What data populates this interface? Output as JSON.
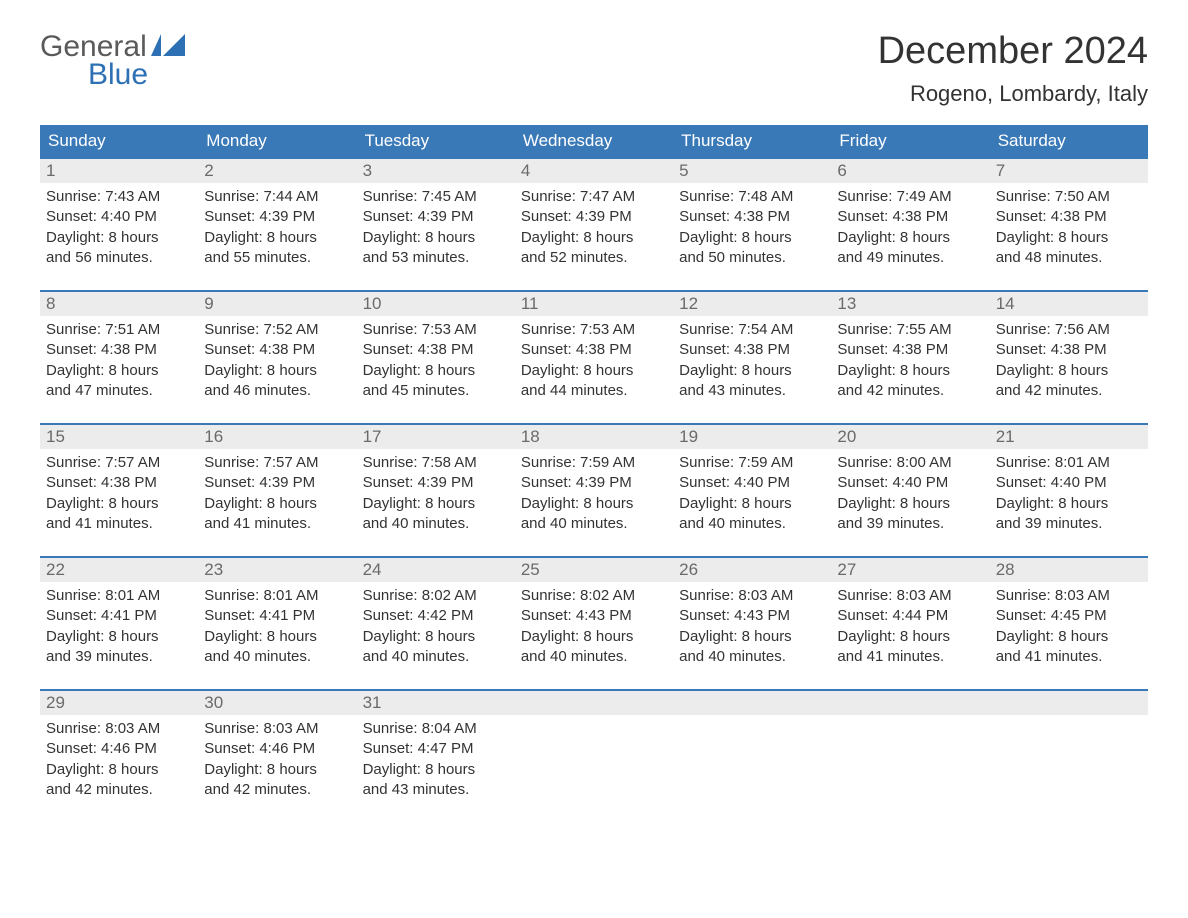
{
  "logo": {
    "word1": "General",
    "word2": "Blue",
    "accent_color": "#2d71b4",
    "text_color": "#5a5a5a"
  },
  "title": "December 2024",
  "location": "Rogeno, Lombardy, Italy",
  "colors": {
    "header_bg": "#3a79b7",
    "header_text": "#ffffff",
    "daynum_bg": "#ececec",
    "daynum_text": "#6a6a6a",
    "body_text": "#333333",
    "week_border": "#3a79b7",
    "page_bg": "#ffffff"
  },
  "typography": {
    "title_fontsize": 38,
    "location_fontsize": 22,
    "dayheader_fontsize": 17,
    "daynum_fontsize": 17,
    "body_fontsize": 15
  },
  "layout": {
    "columns": 7,
    "rows": 5
  },
  "day_headers": [
    "Sunday",
    "Monday",
    "Tuesday",
    "Wednesday",
    "Thursday",
    "Friday",
    "Saturday"
  ],
  "weeks": [
    [
      {
        "n": "1",
        "sunrise": "7:43 AM",
        "sunset": "4:40 PM",
        "dl1": "Daylight: 8 hours",
        "dl2": "and 56 minutes."
      },
      {
        "n": "2",
        "sunrise": "7:44 AM",
        "sunset": "4:39 PM",
        "dl1": "Daylight: 8 hours",
        "dl2": "and 55 minutes."
      },
      {
        "n": "3",
        "sunrise": "7:45 AM",
        "sunset": "4:39 PM",
        "dl1": "Daylight: 8 hours",
        "dl2": "and 53 minutes."
      },
      {
        "n": "4",
        "sunrise": "7:47 AM",
        "sunset": "4:39 PM",
        "dl1": "Daylight: 8 hours",
        "dl2": "and 52 minutes."
      },
      {
        "n": "5",
        "sunrise": "7:48 AM",
        "sunset": "4:38 PM",
        "dl1": "Daylight: 8 hours",
        "dl2": "and 50 minutes."
      },
      {
        "n": "6",
        "sunrise": "7:49 AM",
        "sunset": "4:38 PM",
        "dl1": "Daylight: 8 hours",
        "dl2": "and 49 minutes."
      },
      {
        "n": "7",
        "sunrise": "7:50 AM",
        "sunset": "4:38 PM",
        "dl1": "Daylight: 8 hours",
        "dl2": "and 48 minutes."
      }
    ],
    [
      {
        "n": "8",
        "sunrise": "7:51 AM",
        "sunset": "4:38 PM",
        "dl1": "Daylight: 8 hours",
        "dl2": "and 47 minutes."
      },
      {
        "n": "9",
        "sunrise": "7:52 AM",
        "sunset": "4:38 PM",
        "dl1": "Daylight: 8 hours",
        "dl2": "and 46 minutes."
      },
      {
        "n": "10",
        "sunrise": "7:53 AM",
        "sunset": "4:38 PM",
        "dl1": "Daylight: 8 hours",
        "dl2": "and 45 minutes."
      },
      {
        "n": "11",
        "sunrise": "7:53 AM",
        "sunset": "4:38 PM",
        "dl1": "Daylight: 8 hours",
        "dl2": "and 44 minutes."
      },
      {
        "n": "12",
        "sunrise": "7:54 AM",
        "sunset": "4:38 PM",
        "dl1": "Daylight: 8 hours",
        "dl2": "and 43 minutes."
      },
      {
        "n": "13",
        "sunrise": "7:55 AM",
        "sunset": "4:38 PM",
        "dl1": "Daylight: 8 hours",
        "dl2": "and 42 minutes."
      },
      {
        "n": "14",
        "sunrise": "7:56 AM",
        "sunset": "4:38 PM",
        "dl1": "Daylight: 8 hours",
        "dl2": "and 42 minutes."
      }
    ],
    [
      {
        "n": "15",
        "sunrise": "7:57 AM",
        "sunset": "4:38 PM",
        "dl1": "Daylight: 8 hours",
        "dl2": "and 41 minutes."
      },
      {
        "n": "16",
        "sunrise": "7:57 AM",
        "sunset": "4:39 PM",
        "dl1": "Daylight: 8 hours",
        "dl2": "and 41 minutes."
      },
      {
        "n": "17",
        "sunrise": "7:58 AM",
        "sunset": "4:39 PM",
        "dl1": "Daylight: 8 hours",
        "dl2": "and 40 minutes."
      },
      {
        "n": "18",
        "sunrise": "7:59 AM",
        "sunset": "4:39 PM",
        "dl1": "Daylight: 8 hours",
        "dl2": "and 40 minutes."
      },
      {
        "n": "19",
        "sunrise": "7:59 AM",
        "sunset": "4:40 PM",
        "dl1": "Daylight: 8 hours",
        "dl2": "and 40 minutes."
      },
      {
        "n": "20",
        "sunrise": "8:00 AM",
        "sunset": "4:40 PM",
        "dl1": "Daylight: 8 hours",
        "dl2": "and 39 minutes."
      },
      {
        "n": "21",
        "sunrise": "8:01 AM",
        "sunset": "4:40 PM",
        "dl1": "Daylight: 8 hours",
        "dl2": "and 39 minutes."
      }
    ],
    [
      {
        "n": "22",
        "sunrise": "8:01 AM",
        "sunset": "4:41 PM",
        "dl1": "Daylight: 8 hours",
        "dl2": "and 39 minutes."
      },
      {
        "n": "23",
        "sunrise": "8:01 AM",
        "sunset": "4:41 PM",
        "dl1": "Daylight: 8 hours",
        "dl2": "and 40 minutes."
      },
      {
        "n": "24",
        "sunrise": "8:02 AM",
        "sunset": "4:42 PM",
        "dl1": "Daylight: 8 hours",
        "dl2": "and 40 minutes."
      },
      {
        "n": "25",
        "sunrise": "8:02 AM",
        "sunset": "4:43 PM",
        "dl1": "Daylight: 8 hours",
        "dl2": "and 40 minutes."
      },
      {
        "n": "26",
        "sunrise": "8:03 AM",
        "sunset": "4:43 PM",
        "dl1": "Daylight: 8 hours",
        "dl2": "and 40 minutes."
      },
      {
        "n": "27",
        "sunrise": "8:03 AM",
        "sunset": "4:44 PM",
        "dl1": "Daylight: 8 hours",
        "dl2": "and 41 minutes."
      },
      {
        "n": "28",
        "sunrise": "8:03 AM",
        "sunset": "4:45 PM",
        "dl1": "Daylight: 8 hours",
        "dl2": "and 41 minutes."
      }
    ],
    [
      {
        "n": "29",
        "sunrise": "8:03 AM",
        "sunset": "4:46 PM",
        "dl1": "Daylight: 8 hours",
        "dl2": "and 42 minutes."
      },
      {
        "n": "30",
        "sunrise": "8:03 AM",
        "sunset": "4:46 PM",
        "dl1": "Daylight: 8 hours",
        "dl2": "and 42 minutes."
      },
      {
        "n": "31",
        "sunrise": "8:04 AM",
        "sunset": "4:47 PM",
        "dl1": "Daylight: 8 hours",
        "dl2": "and 43 minutes."
      },
      {
        "empty": true
      },
      {
        "empty": true
      },
      {
        "empty": true
      },
      {
        "empty": true
      }
    ]
  ],
  "labels": {
    "sunrise_prefix": "Sunrise: ",
    "sunset_prefix": "Sunset: "
  }
}
